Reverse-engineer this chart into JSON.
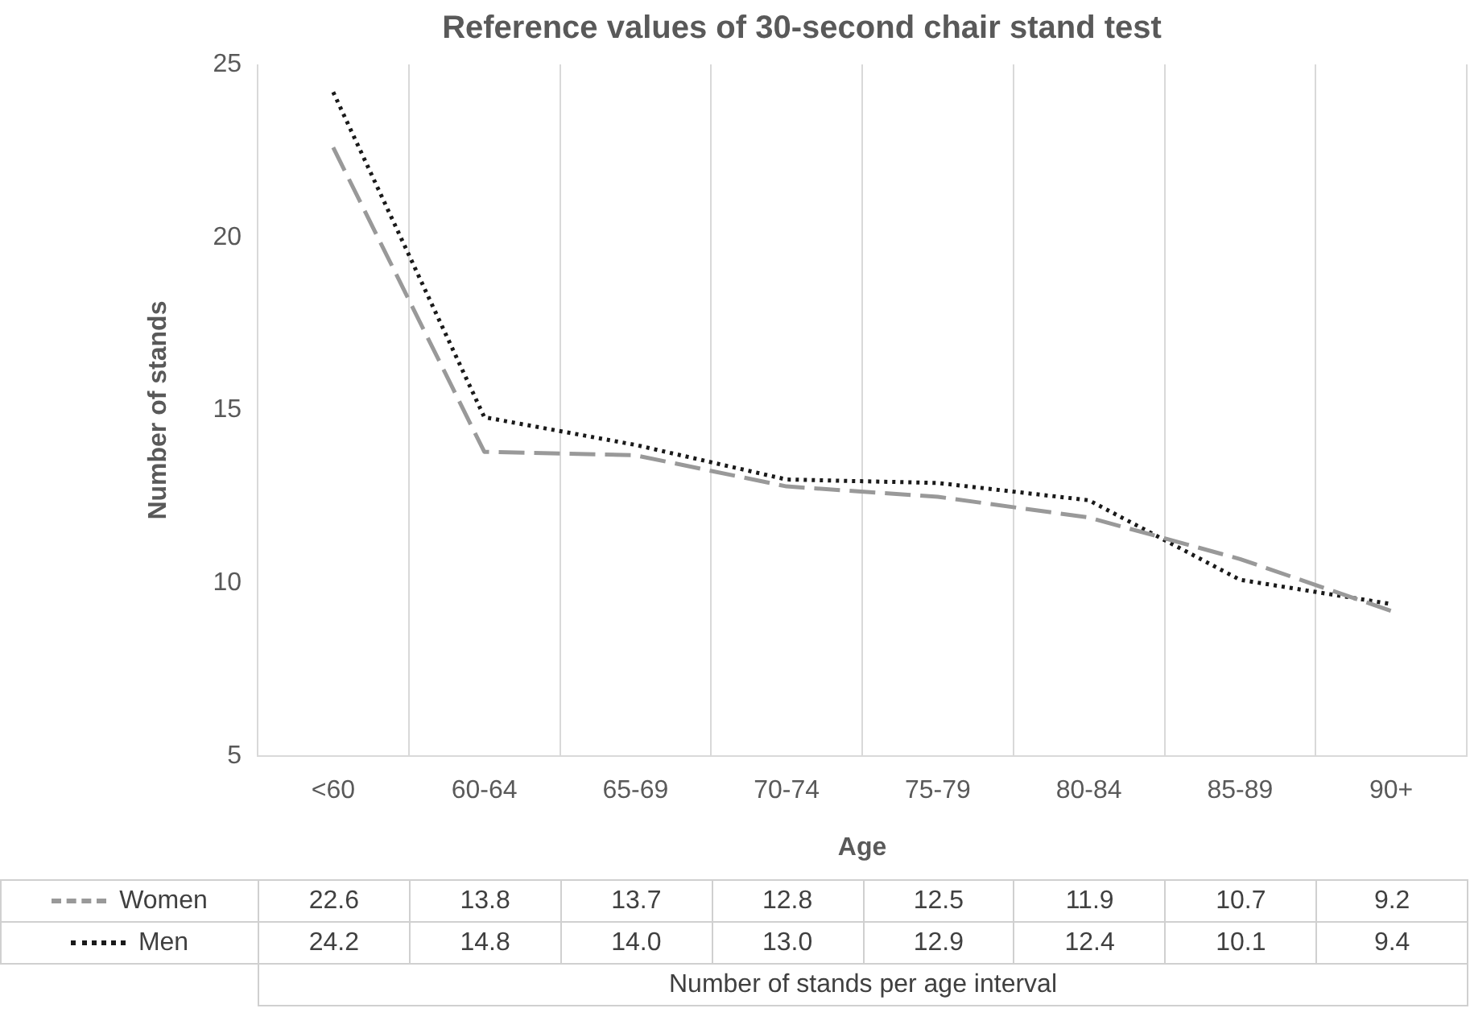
{
  "chart_data": {
    "type": "line",
    "title": "Reference values of 30-second chair stand test",
    "xlabel": "Age",
    "ylabel": "Number of stands",
    "categories": [
      "<60",
      "60-64",
      "65-69",
      "70-74",
      "75-79",
      "80-84",
      "85-89",
      "90+"
    ],
    "series": [
      {
        "name": "Women",
        "color": "#999999",
        "line_style": "dashed",
        "values": [
          22.6,
          13.8,
          13.7,
          12.8,
          12.5,
          11.9,
          10.7,
          9.2
        ],
        "value_labels": [
          "22.6",
          "13.8",
          "13.7",
          "12.8",
          "12.5",
          "11.9",
          "10.7",
          "9.2"
        ]
      },
      {
        "name": "Men",
        "color": "#1a1a1a",
        "line_style": "dotted",
        "values": [
          24.2,
          14.8,
          14.0,
          13.0,
          12.9,
          12.4,
          10.1,
          9.4
        ],
        "value_labels": [
          "24.2",
          "14.8",
          "14.0",
          "13.0",
          "12.9",
          "12.4",
          "10.1",
          "9.4"
        ]
      }
    ],
    "ylim": [
      5,
      25
    ],
    "yticks": [
      5,
      10,
      15,
      20,
      25
    ],
    "grid": "x",
    "legend": "bottom",
    "marker": "none",
    "annotations": [
      "Number of stands per age interval"
    ]
  }
}
